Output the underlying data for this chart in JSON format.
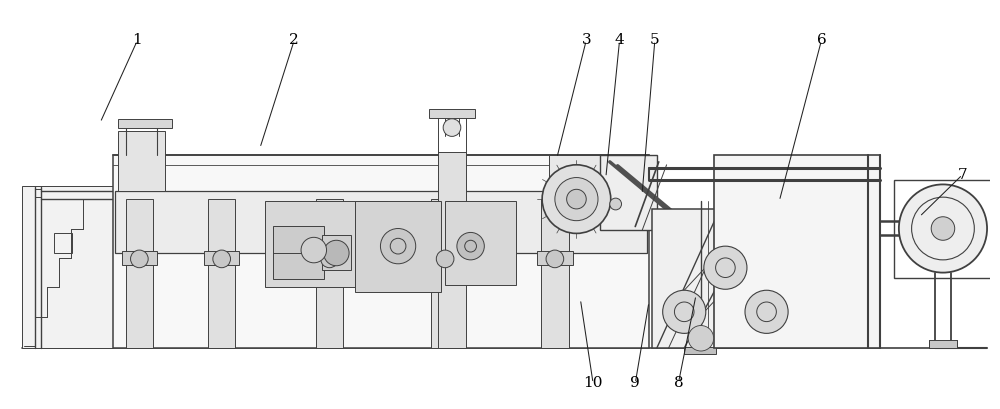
{
  "fig_width": 10.0,
  "fig_height": 4.09,
  "dpi": 100,
  "bg_color": "#ffffff",
  "lc": "#404040",
  "lw": 0.7,
  "labels": {
    "1": [
      1.3,
      3.72,
      0.92,
      2.88
    ],
    "2": [
      2.9,
      3.72,
      2.55,
      2.62
    ],
    "3": [
      5.88,
      3.72,
      5.58,
      2.52
    ],
    "4": [
      6.22,
      3.72,
      6.08,
      2.32
    ],
    "5": [
      6.58,
      3.72,
      6.45,
      2.15
    ],
    "6": [
      8.28,
      3.72,
      7.85,
      2.08
    ],
    "7": [
      9.72,
      2.35,
      9.28,
      1.92
    ],
    "8": [
      6.82,
      0.22,
      7.0,
      1.12
    ],
    "9": [
      6.38,
      0.22,
      6.52,
      1.05
    ],
    "10": [
      5.95,
      0.22,
      5.82,
      1.08
    ]
  }
}
